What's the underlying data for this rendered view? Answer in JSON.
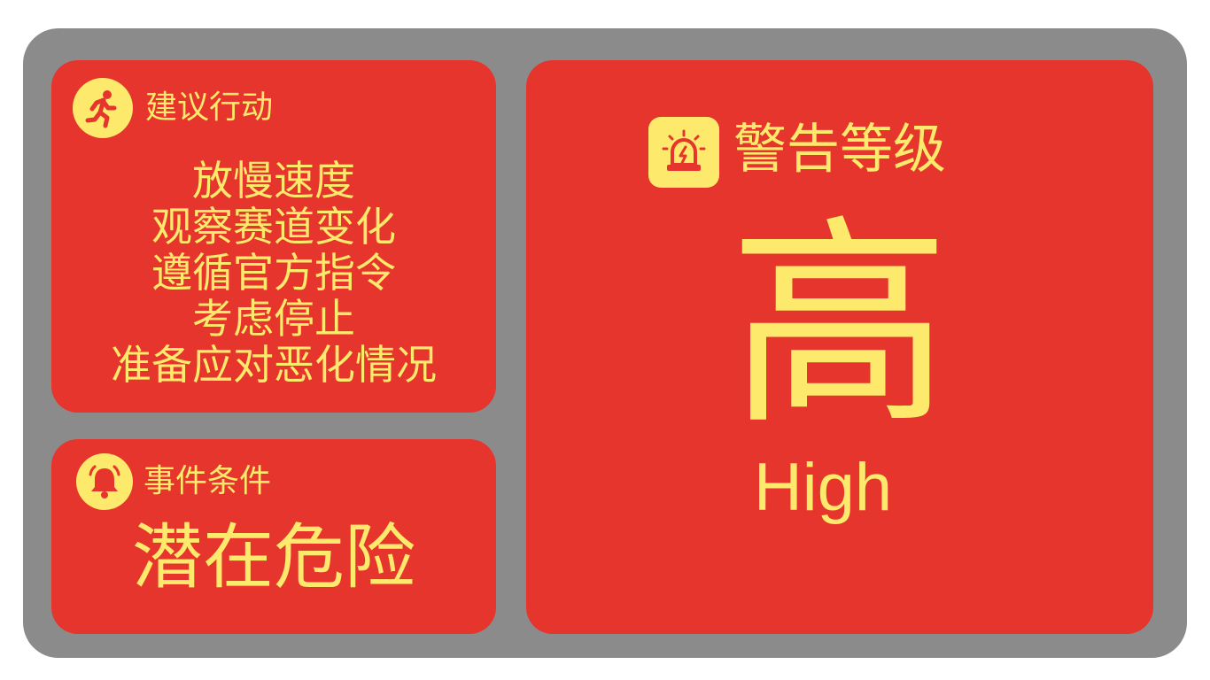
{
  "colors": {
    "frame": "#8c8b8b",
    "panel": "#e5352d",
    "text": "#fde96b"
  },
  "action_panel": {
    "icon": "running-person-icon",
    "label": "建议行动",
    "items": [
      "放慢速度",
      "观察赛道变化",
      "遵循官方指令",
      "考虑停止",
      "准备应对恶化情况"
    ]
  },
  "event_panel": {
    "icon": "bell-icon",
    "label": "事件条件",
    "value": "潜在危险"
  },
  "alert_panel": {
    "icon": "siren-icon",
    "label": "警告等级",
    "level": "高",
    "level_en": "High"
  }
}
